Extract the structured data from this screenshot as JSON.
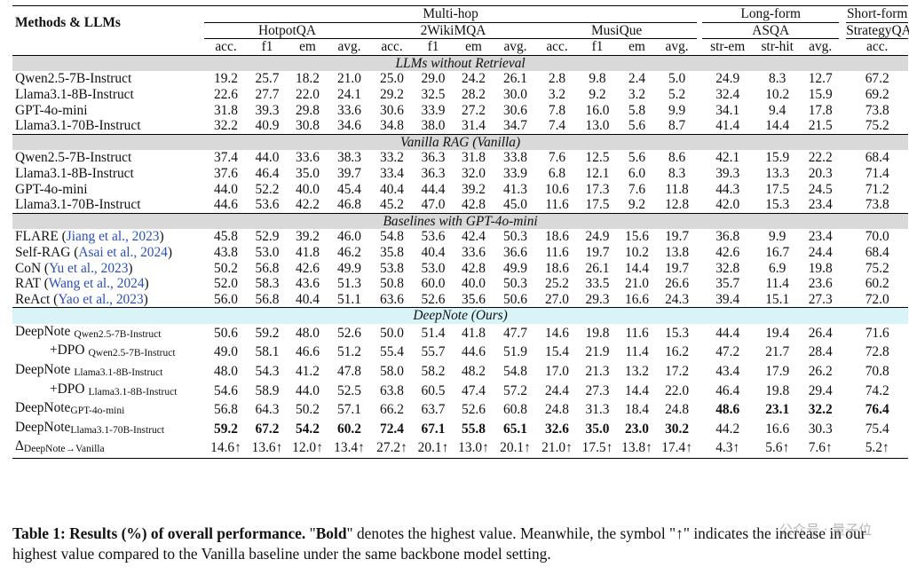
{
  "header": {
    "methods_label": "Methods & LLMs",
    "groups": {
      "multihop": "Multi-hop",
      "longform": "Long-form",
      "shortform": "Short-form"
    },
    "datasets": {
      "hotpot": "HotpotQA",
      "wiki": "2WikiMQA",
      "musique": "MusiQue",
      "asqa": "ASQA",
      "strategy": "StrategyQA"
    },
    "metrics": [
      "acc.",
      "f1",
      "em",
      "avg.",
      "acc.",
      "f1",
      "em",
      "avg.",
      "acc.",
      "f1",
      "em",
      "avg.",
      "str-em",
      "str-hit",
      "avg.",
      "acc."
    ]
  },
  "sections": [
    {
      "title": "LLMs without Retrieval",
      "rows": [
        {
          "method": "Qwen2.5-7B-Instruct",
          "values": [
            "19.2",
            "25.7",
            "18.2",
            "21.0",
            "25.0",
            "29.0",
            "24.2",
            "26.1",
            "2.8",
            "9.8",
            "2.4",
            "5.0",
            "24.9",
            "8.3",
            "12.7",
            "67.2"
          ]
        },
        {
          "method": "Llama3.1-8B-Instruct",
          "values": [
            "22.6",
            "27.7",
            "22.0",
            "24.1",
            "29.2",
            "32.5",
            "28.2",
            "30.0",
            "3.2",
            "9.2",
            "3.2",
            "5.2",
            "32.4",
            "10.2",
            "15.9",
            "69.2"
          ]
        },
        {
          "method": "GPT-4o-mini",
          "values": [
            "31.8",
            "39.3",
            "29.8",
            "33.6",
            "30.6",
            "33.9",
            "27.2",
            "30.6",
            "7.8",
            "16.0",
            "5.8",
            "9.9",
            "34.1",
            "9.4",
            "17.8",
            "73.8"
          ]
        },
        {
          "method": "Llama3.1-70B-Instruct",
          "values": [
            "32.2",
            "40.9",
            "30.8",
            "34.6",
            "34.8",
            "38.0",
            "31.4",
            "34.7",
            "7.4",
            "13.0",
            "5.6",
            "8.7",
            "41.4",
            "14.4",
            "21.5",
            "75.2"
          ]
        }
      ]
    },
    {
      "title": "Vanilla RAG (Vanilla)",
      "rows": [
        {
          "method": "Qwen2.5-7B-Instruct",
          "values": [
            "37.4",
            "44.0",
            "33.6",
            "38.3",
            "33.2",
            "36.3",
            "31.8",
            "33.8",
            "7.6",
            "12.5",
            "5.6",
            "8.6",
            "42.1",
            "15.9",
            "22.2",
            "68.4"
          ]
        },
        {
          "method": "Llama3.1-8B-Instruct",
          "values": [
            "37.6",
            "46.4",
            "35.0",
            "39.7",
            "33.4",
            "36.3",
            "32.0",
            "33.9",
            "6.8",
            "12.1",
            "6.0",
            "8.3",
            "39.3",
            "13.3",
            "20.3",
            "71.4"
          ]
        },
        {
          "method": "GPT-4o-mini",
          "values": [
            "44.0",
            "52.2",
            "40.0",
            "45.4",
            "40.4",
            "44.4",
            "39.2",
            "41.3",
            "10.6",
            "17.3",
            "7.6",
            "11.8",
            "44.3",
            "17.5",
            "24.5",
            "71.2"
          ]
        },
        {
          "method": "Llama3.1-70B-Instruct",
          "values": [
            "44.6",
            "53.6",
            "42.2",
            "46.8",
            "45.2",
            "47.0",
            "42.8",
            "45.0",
            "11.6",
            "17.5",
            "9.2",
            "12.8",
            "42.0",
            "15.3",
            "23.4",
            "73.8"
          ]
        }
      ]
    },
    {
      "title": "Baselines with GPT-4o-mini",
      "rows": [
        {
          "method": "FLARE",
          "cite": "Jiang et al., 2023",
          "values": [
            "45.8",
            "52.9",
            "39.2",
            "46.0",
            "54.8",
            "53.6",
            "42.4",
            "50.3",
            "18.6",
            "24.9",
            "15.6",
            "19.7",
            "36.8",
            "9.9",
            "23.4",
            "70.0"
          ]
        },
        {
          "method": "Self-RAG",
          "cite": "Asai et al., 2024",
          "values": [
            "43.8",
            "53.0",
            "41.8",
            "46.2",
            "35.8",
            "40.4",
            "33.6",
            "36.6",
            "11.6",
            "19.7",
            "10.2",
            "13.8",
            "42.6",
            "16.7",
            "24.4",
            "68.4"
          ]
        },
        {
          "method": "CoN",
          "cite": "Yu et al., 2023",
          "values": [
            "50.2",
            "56.8",
            "42.6",
            "49.9",
            "53.8",
            "53.0",
            "42.8",
            "49.9",
            "18.6",
            "26.1",
            "14.4",
            "19.7",
            "32.8",
            "6.9",
            "19.8",
            "75.2"
          ]
        },
        {
          "method": "RAT",
          "cite": "Wang et al., 2024",
          "values": [
            "52.0",
            "58.3",
            "43.6",
            "51.3",
            "50.8",
            "60.0",
            "40.0",
            "50.3",
            "25.2",
            "33.5",
            "21.0",
            "26.6",
            "35.7",
            "11.4",
            "23.6",
            "60.2"
          ]
        },
        {
          "method": "ReAct",
          "cite": "Yao et al., 2023",
          "values": [
            "56.0",
            "56.8",
            "40.4",
            "51.1",
            "63.6",
            "52.6",
            "35.6",
            "50.6",
            "27.0",
            "29.3",
            "16.6",
            "24.3",
            "39.4",
            "15.1",
            "27.3",
            "72.0"
          ]
        }
      ]
    }
  ],
  "deepnote": {
    "title": "DeepNote (Ours)",
    "rows": [
      {
        "method": "DeepNote",
        "sub": "Qwen2.5-7B-Instruct",
        "values": [
          "50.6",
          "59.2",
          "48.0",
          "52.6",
          "50.0",
          "51.4",
          "41.8",
          "47.7",
          "14.6",
          "19.8",
          "11.6",
          "15.3",
          "44.4",
          "19.4",
          "26.4",
          "71.6"
        ]
      },
      {
        "method": "+DPO",
        "sub": "Qwen2.5-7B-Instruct",
        "values": [
          "49.0",
          "58.1",
          "46.6",
          "51.2",
          "55.4",
          "55.7",
          "44.6",
          "51.9",
          "15.4",
          "21.9",
          "11.4",
          "16.2",
          "47.2",
          "21.7",
          "28.4",
          "72.8"
        ]
      },
      {
        "method": "DeepNote",
        "sub": "Llama3.1-8B-Instruct",
        "values": [
          "48.0",
          "54.3",
          "41.2",
          "47.8",
          "58.0",
          "58.2",
          "48.2",
          "54.8",
          "17.0",
          "21.3",
          "13.2",
          "17.2",
          "43.4",
          "17.9",
          "26.2",
          "70.8"
        ]
      },
      {
        "method": "+DPO",
        "sub": "Llama3.1-8B-Instruct",
        "values": [
          "54.6",
          "58.9",
          "44.0",
          "52.5",
          "63.8",
          "60.5",
          "47.4",
          "57.2",
          "24.4",
          "27.3",
          "14.4",
          "22.0",
          "46.4",
          "19.8",
          "29.4",
          "74.2"
        ]
      },
      {
        "method": "DeepNote",
        "sub": "GPT-4o-mini",
        "values": [
          "56.8",
          "64.3",
          "50.2",
          "57.1",
          "66.2",
          "63.7",
          "52.6",
          "60.8",
          "24.8",
          "31.3",
          "18.4",
          "24.8",
          "48.6",
          "23.1",
          "32.2",
          "76.4"
        ]
      },
      {
        "method": "DeepNote",
        "sub": "Llama3.1-70B-Instruct",
        "values": [
          "59.2",
          "67.2",
          "54.2",
          "60.2",
          "72.4",
          "67.1",
          "55.8",
          "65.1",
          "32.6",
          "35.0",
          "23.0",
          "30.2",
          "44.2",
          "16.6",
          "30.3",
          "75.4"
        ]
      }
    ],
    "delta": {
      "symbol": "Δ",
      "sub": "DeepNote→Vanilla",
      "values": [
        "14.6↑",
        "13.6↑",
        "12.0↑",
        "13.4↑",
        "27.2↑",
        "20.1↑",
        "13.0↑",
        "20.1↑",
        "21.0↑",
        "17.5↑",
        "13.8↑",
        "17.4↑",
        "4.3↑",
        "5.6↑",
        "7.6↑",
        "5.2↑"
      ]
    }
  },
  "caption": {
    "label": "Table 1:",
    "bold_title": "Results (%) of overall performance.",
    "q1": "\"",
    "bold_word": "Bold",
    "text1": "\" denotes the highest value. Meanwhile, the symbol \"↑\"",
    "text2": "indicates the increase in our highest value compared to the Vanilla baseline under the same backbone model setting."
  },
  "watermark": "公众号 · 量子位"
}
